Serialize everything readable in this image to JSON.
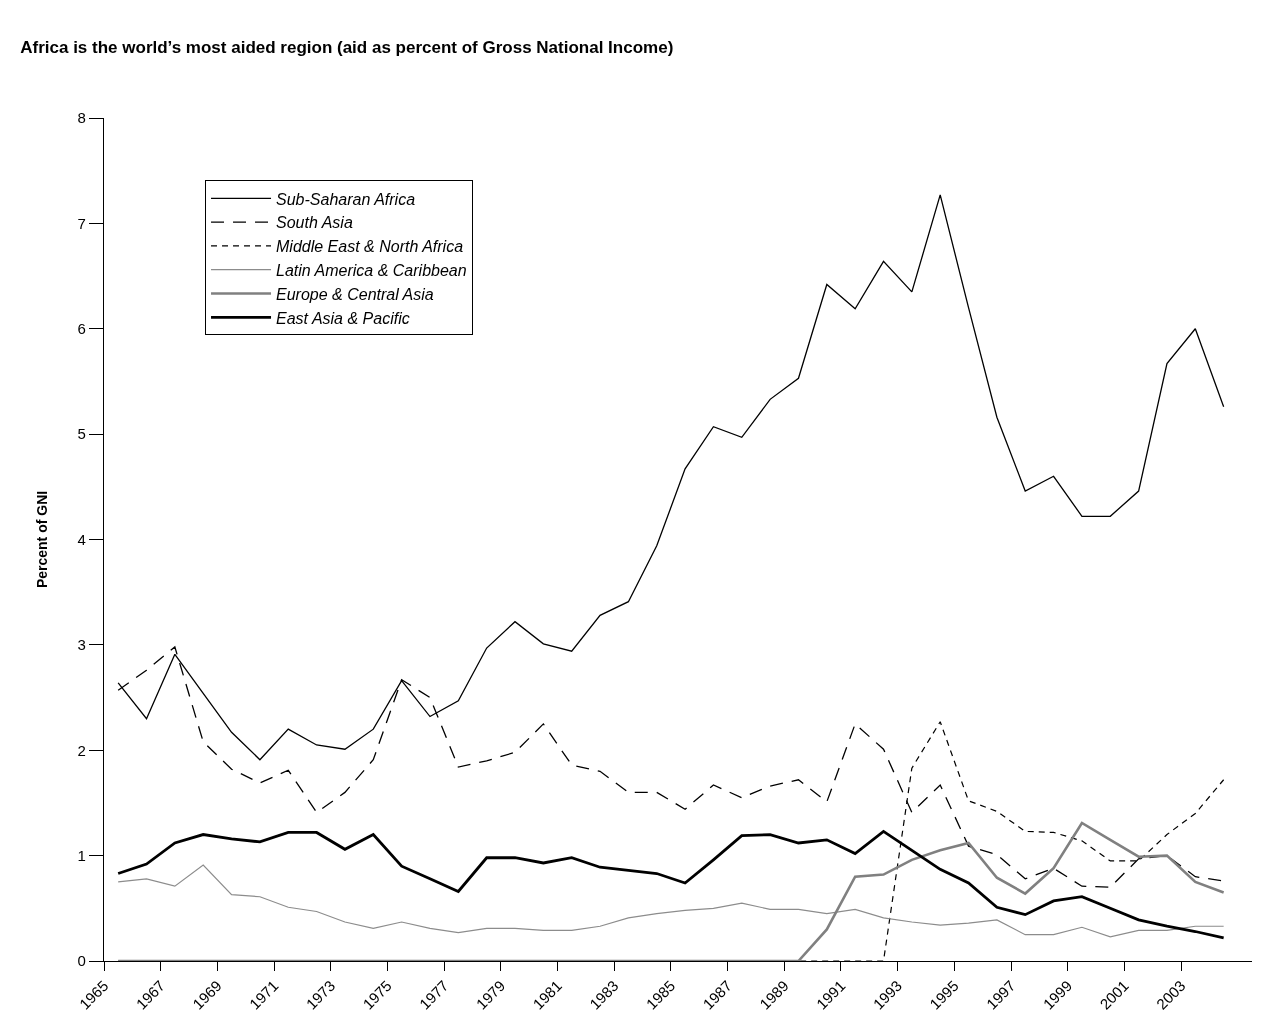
{
  "chart_data": {
    "type": "line",
    "title": "Africa is the world’s most aided region (aid as percent of Gross National Income)",
    "ylabel": "Percent of GNI",
    "x": [
      1965.5,
      1966.5,
      1967.5,
      1968.5,
      1969.5,
      1970.5,
      1971.5,
      1972.5,
      1973.5,
      1974.5,
      1975.5,
      1976.5,
      1977.5,
      1978.5,
      1979.5,
      1980.5,
      1981.5,
      1982.5,
      1983.5,
      1984.5,
      1985.5,
      1986.5,
      1987.5,
      1988.5,
      1989.5,
      1990.5,
      1991.5,
      1992.5,
      1993.5,
      1994.5,
      1995.5,
      1996.5,
      1997.5,
      1998.5,
      1999.5,
      2000.5,
      2001.5,
      2002.5,
      2003.5,
      2004.5
    ],
    "xlim": [
      1965,
      2005.5
    ],
    "xticks": [
      1965,
      1967,
      1969,
      1971,
      1973,
      1975,
      1977,
      1979,
      1981,
      1983,
      1985,
      1987,
      1989,
      1991,
      1993,
      1995,
      1997,
      1999,
      2001,
      2003
    ],
    "ylim": [
      0,
      8
    ],
    "yticks": [
      0,
      1,
      2,
      3,
      4,
      5,
      6,
      7,
      8
    ],
    "grid": false,
    "legend": "top left",
    "marker": "none",
    "series": [
      {
        "name": "Sub-Saharan Africa",
        "color": "#000000",
        "line_style": "solid",
        "values": [
          2.64,
          2.3,
          2.91,
          2.54,
          2.17,
          1.91,
          2.2,
          2.05,
          2.01,
          2.2,
          2.66,
          2.32,
          2.47,
          2.97,
          3.22,
          3.01,
          2.94,
          3.28,
          3.41,
          3.94,
          4.67,
          5.07,
          4.97,
          5.33,
          5.53,
          6.42,
          6.19,
          6.64,
          6.35,
          7.27,
          6.2,
          5.16,
          4.46,
          4.6,
          4.22,
          4.22,
          4.46,
          5.67,
          6.0,
          5.26
        ]
      },
      {
        "name": "South Asia",
        "color": "#000000",
        "line_style": "dashed",
        "values": [
          2.57,
          2.76,
          2.98,
          2.08,
          1.82,
          1.69,
          1.81,
          1.41,
          1.6,
          1.91,
          2.67,
          2.5,
          1.84,
          1.9,
          1.98,
          2.25,
          1.86,
          1.8,
          1.6,
          1.6,
          1.44,
          1.67,
          1.55,
          1.66,
          1.72,
          1.51,
          2.25,
          2.01,
          1.41,
          1.67,
          1.09,
          1.01,
          0.78,
          0.88,
          0.71,
          0.7,
          0.97,
          1.0,
          0.8,
          0.76
        ]
      },
      {
        "name": "Middle East & North Africa",
        "color": "#000000",
        "line_style": "dashed",
        "values": [
          0,
          0,
          0,
          0,
          0,
          0,
          0,
          0,
          0,
          0,
          0,
          0,
          0,
          0,
          0,
          0,
          0,
          0,
          0,
          0,
          0,
          0,
          0,
          0,
          0,
          0,
          0,
          0,
          1.83,
          2.27,
          1.52,
          1.42,
          1.23,
          1.22,
          1.14,
          0.95,
          0.95,
          1.2,
          1.4,
          1.72
        ]
      },
      {
        "name": "Latin America & Caribbean",
        "color": "#8c8c8c",
        "line_style": "solid",
        "values": [
          0.75,
          0.78,
          0.71,
          0.91,
          0.63,
          0.61,
          0.51,
          0.47,
          0.37,
          0.31,
          0.37,
          0.31,
          0.27,
          0.31,
          0.31,
          0.29,
          0.29,
          0.33,
          0.41,
          0.45,
          0.48,
          0.5,
          0.55,
          0.49,
          0.49,
          0.45,
          0.49,
          0.41,
          0.37,
          0.34,
          0.36,
          0.39,
          0.25,
          0.25,
          0.32,
          0.23,
          0.29,
          0.29,
          0.33,
          0.33
        ]
      },
      {
        "name": "Europe & Central Asia",
        "color": "#808080",
        "line_style": "solid",
        "values": [
          0,
          0,
          0,
          0,
          0,
          0,
          0,
          0,
          0,
          0,
          0,
          0,
          0,
          0,
          0,
          0,
          0,
          0,
          0,
          0,
          0,
          0,
          0,
          0,
          0,
          0.3,
          0.8,
          0.82,
          0.96,
          1.05,
          1.12,
          0.79,
          0.64,
          0.88,
          1.31,
          1.15,
          0.99,
          1.0,
          0.75,
          0.65
        ]
      },
      {
        "name": "East Asia & Pacific",
        "color": "#000000",
        "line_style": "solid",
        "values": [
          0.83,
          0.92,
          1.12,
          1.2,
          1.16,
          1.13,
          1.22,
          1.22,
          1.06,
          1.2,
          0.9,
          0.78,
          0.66,
          0.98,
          0.98,
          0.93,
          0.98,
          0.89,
          0.86,
          0.83,
          0.74,
          0.96,
          1.19,
          1.2,
          1.12,
          1.15,
          1.02,
          1.23,
          1.05,
          0.87,
          0.74,
          0.51,
          0.44,
          0.57,
          0.61,
          0.5,
          0.39,
          0.33,
          0.28,
          0.22
        ]
      }
    ]
  }
}
